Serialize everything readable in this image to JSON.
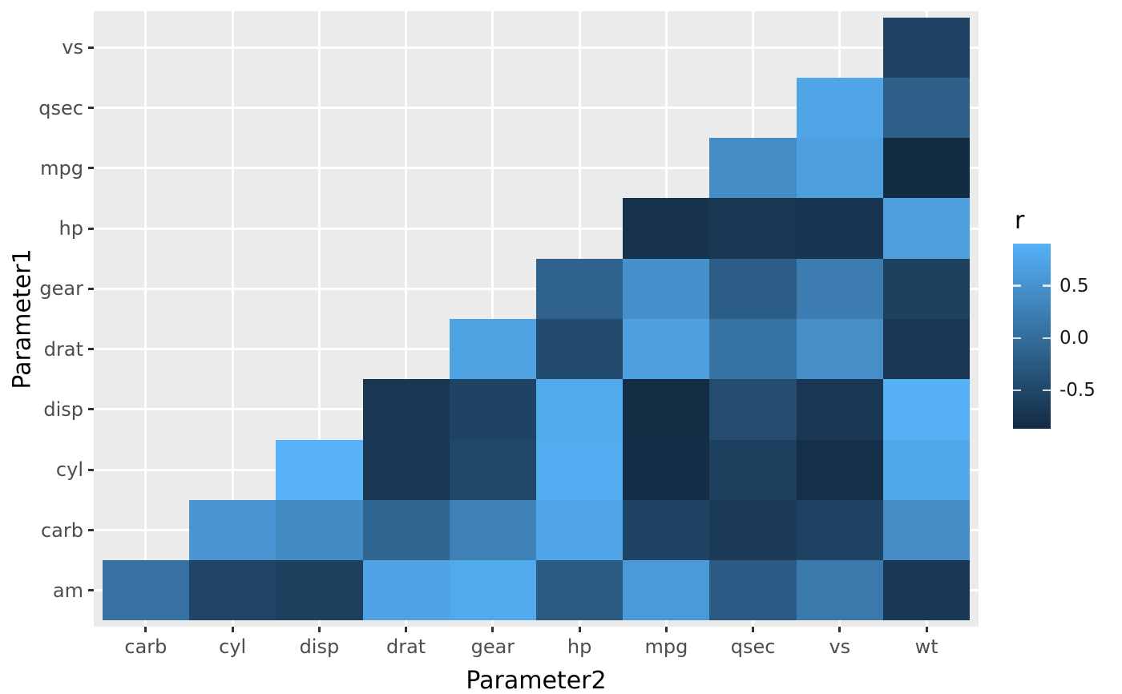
{
  "x_axis": {
    "title": "Parameter2",
    "categories": [
      "carb",
      "cyl",
      "disp",
      "drat",
      "gear",
      "hp",
      "mpg",
      "qsec",
      "vs",
      "wt"
    ]
  },
  "y_axis": {
    "title": "Parameter1",
    "categories_bottom_to_top": [
      "am",
      "carb",
      "cyl",
      "disp",
      "drat",
      "gear",
      "hp",
      "mpg",
      "qsec",
      "vs"
    ]
  },
  "legend": {
    "title": "r",
    "ticks": [
      {
        "label": "0.5",
        "value": 0.5
      },
      {
        "label": "0.0",
        "value": 0.0
      },
      {
        "label": "-0.5",
        "value": -0.5
      }
    ]
  },
  "colors": {
    "gradient_low": "#132B43",
    "gradient_high": "#56B1F7",
    "panel_background": "#EBEBEB",
    "grid": "#FFFFFF",
    "axis_text": "#4D4D4D",
    "title_text": "#000000",
    "tick_mark": "#333333",
    "legend_text": "#1A1A1A",
    "legend_tick": "rgba(255,255,255,0.8)"
  },
  "chart_data": {
    "type": "heatmap",
    "title": "",
    "xlabel": "Parameter2",
    "ylabel": "Parameter1",
    "value_name": "r",
    "x": [
      "carb",
      "cyl",
      "disp",
      "drat",
      "gear",
      "hp",
      "mpg",
      "qsec",
      "vs",
      "wt"
    ],
    "y_bottom_to_top": [
      "am",
      "carb",
      "cyl",
      "disp",
      "drat",
      "gear",
      "hp",
      "mpg",
      "qsec",
      "vs"
    ],
    "domain": [
      -0.868,
      0.902
    ],
    "legend_position": "right",
    "grid": "major-white-on-grey",
    "cells": [
      {
        "p1": "am",
        "p2": "carb",
        "r": 0.058
      },
      {
        "p1": "am",
        "p2": "cyl",
        "r": -0.523
      },
      {
        "p1": "am",
        "p2": "disp",
        "r": -0.591
      },
      {
        "p1": "am",
        "p2": "drat",
        "r": 0.713
      },
      {
        "p1": "am",
        "p2": "gear",
        "r": 0.794
      },
      {
        "p1": "am",
        "p2": "hp",
        "r": -0.243
      },
      {
        "p1": "am",
        "p2": "mpg",
        "r": 0.6
      },
      {
        "p1": "am",
        "p2": "qsec",
        "r": -0.23
      },
      {
        "p1": "am",
        "p2": "vs",
        "r": 0.168
      },
      {
        "p1": "am",
        "p2": "wt",
        "r": -0.692
      },
      {
        "p1": "carb",
        "p2": "cyl",
        "r": 0.527
      },
      {
        "p1": "carb",
        "p2": "disp",
        "r": 0.395
      },
      {
        "p1": "carb",
        "p2": "drat",
        "r": -0.091
      },
      {
        "p1": "carb",
        "p2": "gear",
        "r": 0.274
      },
      {
        "p1": "carb",
        "p2": "hp",
        "r": 0.75
      },
      {
        "p1": "carb",
        "p2": "mpg",
        "r": -0.551
      },
      {
        "p1": "carb",
        "p2": "qsec",
        "r": -0.656
      },
      {
        "p1": "carb",
        "p2": "vs",
        "r": -0.57
      },
      {
        "p1": "carb",
        "p2": "wt",
        "r": 0.428
      },
      {
        "p1": "cyl",
        "p2": "disp",
        "r": 0.902
      },
      {
        "p1": "cyl",
        "p2": "drat",
        "r": -0.7
      },
      {
        "p1": "cyl",
        "p2": "gear",
        "r": -0.493
      },
      {
        "p1": "cyl",
        "p2": "hp",
        "r": 0.832
      },
      {
        "p1": "cyl",
        "p2": "mpg",
        "r": -0.852
      },
      {
        "p1": "cyl",
        "p2": "qsec",
        "r": -0.591
      },
      {
        "p1": "cyl",
        "p2": "vs",
        "r": -0.811
      },
      {
        "p1": "cyl",
        "p2": "wt",
        "r": 0.782
      },
      {
        "p1": "disp",
        "p2": "drat",
        "r": -0.71
      },
      {
        "p1": "disp",
        "p2": "gear",
        "r": -0.556
      },
      {
        "p1": "disp",
        "p2": "hp",
        "r": 0.791
      },
      {
        "p1": "disp",
        "p2": "mpg",
        "r": -0.848
      },
      {
        "p1": "disp",
        "p2": "qsec",
        "r": -0.434
      },
      {
        "p1": "disp",
        "p2": "vs",
        "r": -0.71
      },
      {
        "p1": "disp",
        "p2": "wt",
        "r": 0.888
      },
      {
        "p1": "drat",
        "p2": "gear",
        "r": 0.7
      },
      {
        "p1": "drat",
        "p2": "hp",
        "r": -0.449
      },
      {
        "p1": "drat",
        "p2": "mpg",
        "r": 0.681
      },
      {
        "p1": "drat",
        "p2": "qsec",
        "r": 0.091
      },
      {
        "p1": "drat",
        "p2": "vs",
        "r": 0.44
      },
      {
        "p1": "drat",
        "p2": "wt",
        "r": -0.712
      },
      {
        "p1": "gear",
        "p2": "hp",
        "r": -0.126
      },
      {
        "p1": "gear",
        "p2": "mpg",
        "r": 0.48
      },
      {
        "p1": "gear",
        "p2": "qsec",
        "r": -0.213
      },
      {
        "p1": "gear",
        "p2": "vs",
        "r": 0.206
      },
      {
        "p1": "gear",
        "p2": "wt",
        "r": -0.583
      },
      {
        "p1": "hp",
        "p2": "mpg",
        "r": -0.776
      },
      {
        "p1": "hp",
        "p2": "qsec",
        "r": -0.708
      },
      {
        "p1": "hp",
        "p2": "vs",
        "r": -0.723
      },
      {
        "p1": "hp",
        "p2": "wt",
        "r": 0.659
      },
      {
        "p1": "mpg",
        "p2": "qsec",
        "r": 0.419
      },
      {
        "p1": "mpg",
        "p2": "vs",
        "r": 0.664
      },
      {
        "p1": "mpg",
        "p2": "wt",
        "r": -0.868
      },
      {
        "p1": "qsec",
        "p2": "vs",
        "r": 0.745
      },
      {
        "p1": "qsec",
        "p2": "wt",
        "r": -0.175
      },
      {
        "p1": "vs",
        "p2": "wt",
        "r": -0.555
      }
    ]
  }
}
